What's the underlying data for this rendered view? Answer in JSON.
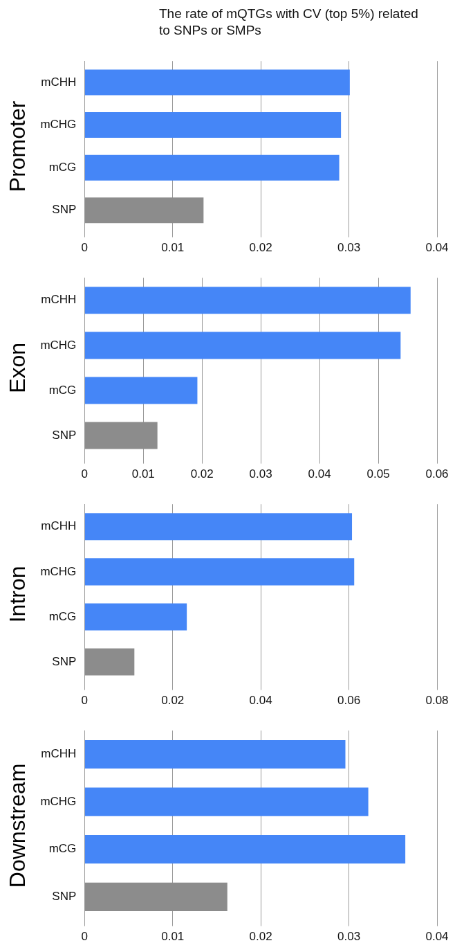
{
  "chart_data": [
    {
      "type": "bar",
      "orientation": "horizontal",
      "title": "The rate of mQTGs with CV (top 5%) related to SNPs or SMPs",
      "ylabel": "Promoter",
      "categories": [
        "mCHH",
        "mCHG",
        "mCG",
        "SNP"
      ],
      "values": [
        0.0301,
        0.0291,
        0.0289,
        0.0135
      ],
      "colors": [
        "#4586f7",
        "#4586f7",
        "#4586f7",
        "#8c8c8c"
      ],
      "xlim": [
        0,
        0.04
      ],
      "xticks": [
        0,
        0.01,
        0.02,
        0.03,
        0.04
      ],
      "grid": "x"
    },
    {
      "type": "bar",
      "orientation": "horizontal",
      "ylabel": "Exon",
      "categories": [
        "mCHH",
        "mCHG",
        "mCG",
        "SNP"
      ],
      "values": [
        0.0555,
        0.0538,
        0.0192,
        0.0124
      ],
      "colors": [
        "#4586f7",
        "#4586f7",
        "#4586f7",
        "#8c8c8c"
      ],
      "xlim": [
        0,
        0.06
      ],
      "xticks": [
        0,
        0.01,
        0.02,
        0.03,
        0.04,
        0.05,
        0.06
      ],
      "grid": "x"
    },
    {
      "type": "bar",
      "orientation": "horizontal",
      "ylabel": "Intron",
      "categories": [
        "mCHH",
        "mCHG",
        "mCG",
        "SNP"
      ],
      "values": [
        0.0607,
        0.0612,
        0.0232,
        0.0113
      ],
      "colors": [
        "#4586f7",
        "#4586f7",
        "#4586f7",
        "#8c8c8c"
      ],
      "xlim": [
        0,
        0.08
      ],
      "xticks": [
        0,
        0.02,
        0.04,
        0.06,
        0.08
      ],
      "grid": "x"
    },
    {
      "type": "bar",
      "orientation": "horizontal",
      "ylabel": "Downstream",
      "categories": [
        "mCHH",
        "mCHG",
        "mCG",
        "SNP"
      ],
      "values": [
        0.0296,
        0.0322,
        0.0364,
        0.0162
      ],
      "colors": [
        "#4586f7",
        "#4586f7",
        "#4586f7",
        "#8c8c8c"
      ],
      "xlim": [
        0,
        0.04
      ],
      "xticks": [
        0,
        0.01,
        0.02,
        0.03,
        0.04
      ],
      "grid": "x"
    }
  ]
}
